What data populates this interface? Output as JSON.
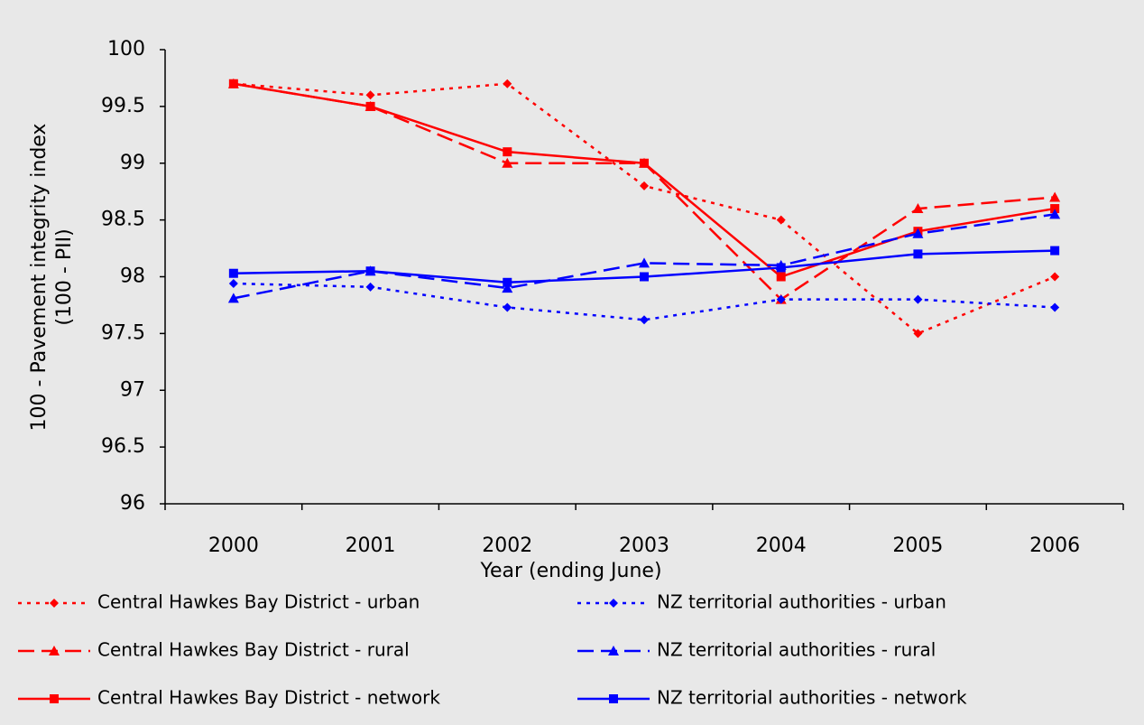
{
  "chart_data": {
    "type": "line",
    "xlabel": "Year (ending June)",
    "ylabel": [
      "100 - Pavement integrity index",
      "(100 - PII)"
    ],
    "categories": [
      "2000",
      "2001",
      "2002",
      "2003",
      "2004",
      "2005",
      "2006"
    ],
    "ylim": [
      96,
      100
    ],
    "yticks": [
      96,
      96.5,
      97,
      97.5,
      98,
      98.5,
      99,
      99.5,
      100
    ],
    "grid": false,
    "series": [
      {
        "name": "Central Hawkes Bay District - urban",
        "color": "#ff0000",
        "dash": "dotted",
        "marker": "diamond",
        "values": [
          99.7,
          99.6,
          99.7,
          98.8,
          98.5,
          97.5,
          98.0
        ]
      },
      {
        "name": "Central Hawkes Bay District - rural",
        "color": "#ff0000",
        "dash": "dashed",
        "marker": "triangle",
        "values": [
          99.7,
          99.5,
          99.0,
          99.0,
          97.8,
          98.6,
          98.7
        ]
      },
      {
        "name": "Central Hawkes Bay District - network",
        "color": "#ff0000",
        "dash": "solid",
        "marker": "square",
        "values": [
          99.7,
          99.5,
          99.1,
          99.0,
          98.0,
          98.4,
          98.6
        ]
      },
      {
        "name": "NZ territorial authorities - urban",
        "color": "#0000ff",
        "dash": "dotted",
        "marker": "diamond",
        "values": [
          97.94,
          97.91,
          97.73,
          97.62,
          97.8,
          97.8,
          97.73
        ]
      },
      {
        "name": "NZ territorial authorities - rural",
        "color": "#0000ff",
        "dash": "dashed",
        "marker": "triangle",
        "values": [
          97.81,
          98.05,
          97.9,
          98.12,
          98.1,
          98.38,
          98.55
        ]
      },
      {
        "name": "NZ territorial authorities - network",
        "color": "#0000ff",
        "dash": "solid",
        "marker": "square",
        "values": [
          98.03,
          98.05,
          97.95,
          98.0,
          98.08,
          98.2,
          98.23
        ]
      }
    ]
  }
}
